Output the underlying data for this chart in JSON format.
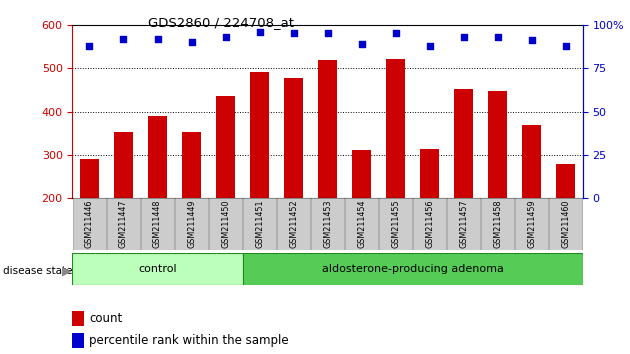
{
  "title": "GDS2860 / 224708_at",
  "samples": [
    "GSM211446",
    "GSM211447",
    "GSM211448",
    "GSM211449",
    "GSM211450",
    "GSM211451",
    "GSM211452",
    "GSM211453",
    "GSM211454",
    "GSM211455",
    "GSM211456",
    "GSM211457",
    "GSM211458",
    "GSM211459",
    "GSM211460"
  ],
  "counts": [
    290,
    352,
    390,
    352,
    435,
    492,
    478,
    519,
    312,
    522,
    314,
    452,
    448,
    369,
    279
  ],
  "percentiles": [
    88,
    92,
    92,
    90,
    93,
    96,
    95,
    95,
    89,
    95,
    88,
    93,
    93,
    91,
    88
  ],
  "control_count": 5,
  "group_labels": [
    "control",
    "aldosterone-producing adenoma"
  ],
  "bar_color": "#cc0000",
  "dot_color": "#0000cc",
  "control_bg": "#bbffbb",
  "adenoma_bg": "#55cc55",
  "ylim_left": [
    200,
    600
  ],
  "ylim_right": [
    0,
    100
  ],
  "yticks_left": [
    200,
    300,
    400,
    500,
    600
  ],
  "yticks_right": [
    0,
    25,
    50,
    75,
    100
  ],
  "grid_values": [
    300,
    400,
    500
  ],
  "ylabel_left_color": "#cc0000",
  "ylabel_right_color": "#0000cc",
  "legend_count_label": "count",
  "legend_pct_label": "percentile rank within the sample",
  "disease_state_label": "disease state",
  "tick_label_bg": "#cccccc",
  "background_color": "#ffffff"
}
